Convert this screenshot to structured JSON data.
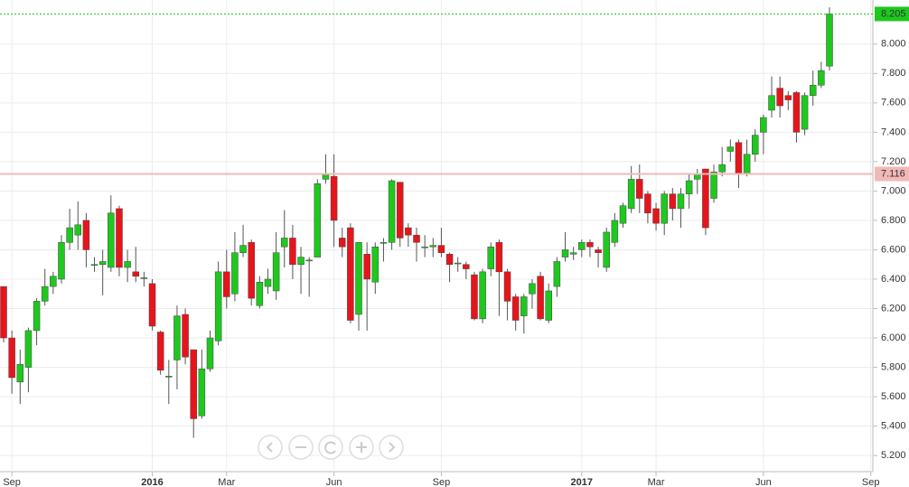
{
  "chart_data": {
    "type": "candlestick",
    "categories": [
      null,
      "Sep",
      null,
      null,
      null,
      null,
      null,
      null,
      null,
      null,
      null,
      null,
      null,
      null,
      null,
      null,
      null,
      null,
      "2016",
      null,
      null,
      null,
      null,
      null,
      null,
      null,
      null,
      "Mar",
      null,
      null,
      null,
      null,
      null,
      null,
      null,
      null,
      null,
      null,
      null,
      null,
      "Jun",
      null,
      null,
      null,
      null,
      null,
      null,
      null,
      null,
      null,
      null,
      null,
      null,
      "Sep",
      null,
      null,
      null,
      null,
      null,
      null,
      null,
      null,
      null,
      null,
      null,
      null,
      null,
      null,
      null,
      null,
      "2017",
      null,
      null,
      null,
      null,
      null,
      null,
      null,
      null,
      "Mar",
      null,
      null,
      null,
      null,
      null,
      null,
      null,
      null,
      null,
      null,
      null,
      null,
      "Jun",
      null,
      null,
      null,
      null,
      null,
      null,
      null,
      null,
      null,
      null,
      null,
      null,
      "Sep"
    ],
    "open": [
      6.35,
      6.0,
      5.7,
      5.8,
      6.05,
      6.25,
      6.35,
      6.4,
      6.65,
      6.7,
      6.8,
      6.5,
      6.5,
      6.48,
      6.88,
      6.48,
      6.45,
      6.41,
      6.37,
      6.04,
      5.74,
      5.85,
      6.16,
      5.92,
      5.47,
      5.79,
      5.98,
      6.45,
      6.3,
      6.58,
      6.65,
      6.22,
      6.35,
      6.32,
      6.62,
      6.68,
      6.5,
      6.53,
      6.55,
      7.08,
      7.1,
      6.68,
      6.75,
      6.16,
      6.57,
      6.38,
      6.65,
      6.65,
      7.06,
      6.75,
      6.7,
      6.62,
      6.62,
      6.63,
      6.57,
      6.51,
      6.5,
      6.43,
      6.13,
      6.47,
      6.65,
      6.45,
      6.28,
      6.15,
      6.3,
      6.42,
      6.12,
      6.35,
      6.55,
      6.57,
      6.6,
      6.65,
      6.6,
      6.48,
      6.65,
      6.78,
      6.88,
      7.08,
      6.98,
      6.88,
      6.78,
      6.98,
      6.88,
      6.98,
      7.08,
      7.15,
      6.95,
      7.13,
      7.27,
      7.33,
      7.12,
      7.25,
      7.4,
      7.55,
      7.7,
      7.65,
      7.67,
      7.42,
      7.65,
      7.72,
      7.85,
      null,
      null,
      null,
      null,
      null
    ],
    "high": [
      6.35,
      6.05,
      5.92,
      6.07,
      6.27,
      6.47,
      6.45,
      6.7,
      6.88,
      6.93,
      6.85,
      6.55,
      6.6,
      6.97,
      6.9,
      6.6,
      6.62,
      6.45,
      6.4,
      6.05,
      5.85,
      6.22,
      6.2,
      5.92,
      5.92,
      6.05,
      6.52,
      6.6,
      6.72,
      6.77,
      6.67,
      6.42,
      6.47,
      6.72,
      6.87,
      6.77,
      6.62,
      6.55,
      7.08,
      7.25,
      7.25,
      6.75,
      6.78,
      6.65,
      6.65,
      6.65,
      6.68,
      7.08,
      7.06,
      6.78,
      6.75,
      6.7,
      6.68,
      6.75,
      6.58,
      6.55,
      6.52,
      6.45,
      6.47,
      6.65,
      6.67,
      6.47,
      6.3,
      6.3,
      6.4,
      6.45,
      6.37,
      6.55,
      6.72,
      6.62,
      6.67,
      6.67,
      6.62,
      6.75,
      6.85,
      6.92,
      7.17,
      7.18,
      7.0,
      6.92,
      7.0,
      7.02,
      7.02,
      7.12,
      7.15,
      7.15,
      7.18,
      7.3,
      7.35,
      7.35,
      7.35,
      7.42,
      7.52,
      7.78,
      7.78,
      7.68,
      7.68,
      7.67,
      7.82,
      7.88,
      8.25,
      null,
      null,
      null,
      null,
      null
    ],
    "low": [
      5.97,
      5.62,
      5.55,
      5.63,
      5.95,
      6.22,
      6.3,
      6.37,
      6.6,
      6.6,
      6.48,
      6.45,
      6.29,
      6.45,
      6.42,
      6.38,
      6.38,
      6.35,
      6.05,
      5.75,
      5.55,
      5.65,
      5.82,
      5.32,
      5.45,
      5.77,
      5.95,
      6.2,
      6.25,
      6.55,
      6.22,
      6.2,
      6.3,
      6.26,
      6.48,
      6.4,
      6.3,
      6.28,
      6.55,
      7.05,
      6.62,
      6.55,
      6.1,
      6.05,
      6.05,
      6.3,
      6.52,
      6.6,
      6.62,
      6.62,
      6.52,
      6.55,
      6.55,
      6.55,
      6.38,
      6.45,
      6.4,
      6.12,
      6.1,
      6.42,
      6.15,
      6.12,
      6.05,
      6.03,
      6.2,
      6.12,
      6.1,
      6.28,
      6.52,
      6.53,
      6.55,
      6.55,
      6.48,
      6.45,
      6.62,
      6.75,
      6.85,
      6.85,
      6.78,
      6.73,
      6.7,
      6.8,
      6.75,
      6.88,
      6.98,
      6.7,
      6.92,
      7.1,
      7.2,
      7.02,
      7.1,
      7.2,
      7.25,
      7.5,
      7.5,
      7.55,
      7.33,
      7.38,
      7.58,
      7.7,
      7.82,
      null,
      null,
      null,
      null,
      null
    ],
    "close": [
      6.0,
      5.73,
      5.82,
      6.05,
      6.25,
      6.35,
      6.42,
      6.65,
      6.75,
      6.77,
      6.6,
      6.5,
      6.52,
      6.85,
      6.48,
      6.52,
      6.42,
      6.41,
      6.08,
      5.78,
      5.74,
      6.15,
      5.87,
      5.45,
      5.79,
      6.0,
      6.45,
      6.28,
      6.58,
      6.63,
      6.27,
      6.38,
      6.4,
      6.58,
      6.68,
      6.5,
      6.55,
      6.53,
      7.05,
      7.12,
      6.8,
      6.62,
      6.12,
      6.65,
      6.4,
      6.62,
      6.65,
      7.07,
      6.68,
      6.7,
      6.65,
      6.62,
      6.63,
      6.58,
      6.5,
      6.51,
      6.47,
      6.13,
      6.45,
      6.62,
      6.45,
      6.25,
      6.12,
      6.28,
      6.37,
      6.13,
      6.32,
      6.52,
      6.6,
      6.58,
      6.65,
      6.62,
      6.58,
      6.72,
      6.8,
      6.9,
      7.08,
      6.95,
      6.85,
      6.78,
      6.98,
      6.88,
      6.98,
      7.07,
      7.12,
      6.75,
      7.13,
      7.18,
      7.3,
      7.12,
      7.25,
      7.38,
      7.5,
      7.65,
      7.58,
      7.62,
      7.4,
      7.65,
      7.72,
      7.82,
      8.205,
      null,
      null,
      null,
      null,
      null
    ],
    "up_color": "#1ec81e",
    "down_color": "#e8141b",
    "ylim": [
      5.09,
      8.3
    ],
    "yticks": [
      {
        "value": 5.2,
        "label": "5.200"
      },
      {
        "value": 5.4,
        "label": "5.400"
      },
      {
        "value": 5.6,
        "label": "5.600"
      },
      {
        "value": 5.8,
        "label": "5.800"
      },
      {
        "value": 6.0,
        "label": "6.000"
      },
      {
        "value": 6.2,
        "label": "6.200"
      },
      {
        "value": 6.4,
        "label": "6.400"
      },
      {
        "value": 6.6,
        "label": "6.600"
      },
      {
        "value": 6.8,
        "label": "6.800"
      },
      {
        "value": 7.0,
        "label": "7.000"
      },
      {
        "value": 7.2,
        "label": "7.200"
      },
      {
        "value": 7.4,
        "label": "7.400"
      },
      {
        "value": 7.6,
        "label": "7.600"
      },
      {
        "value": 7.8,
        "label": "7.800"
      },
      {
        "value": 8.0,
        "label": "8.000"
      }
    ],
    "grid": true,
    "price_lines": [
      {
        "value": 8.205,
        "color": "#1ec81e",
        "style": "dotted"
      },
      {
        "value": 7.116,
        "color": "#f2b8b8",
        "style": "solid"
      }
    ]
  }
}
